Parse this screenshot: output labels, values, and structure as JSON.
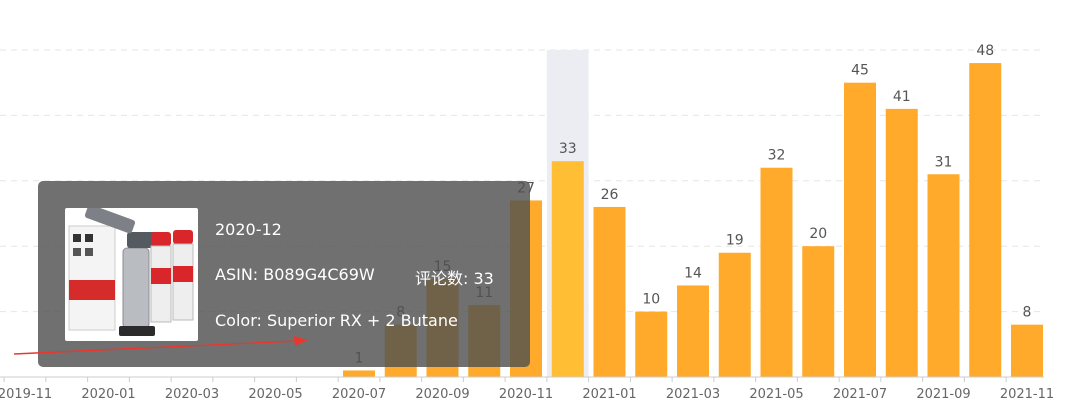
{
  "chart_data": {
    "type": "bar",
    "categories": [
      "2019-11",
      "2019-12",
      "2020-01",
      "2020-02",
      "2020-03",
      "2020-04",
      "2020-05",
      "2020-06",
      "2020-07",
      "2020-08",
      "2020-09",
      "2020-10",
      "2020-11",
      "2020-12",
      "2021-01",
      "2021-02",
      "2021-03",
      "2021-04",
      "2021-05",
      "2021-06",
      "2021-07",
      "2021-08",
      "2021-09",
      "2021-10",
      "2021-11"
    ],
    "visible_tick_labels": [
      "2019-11",
      "2020-01",
      "2020-03",
      "2020-05",
      "2020-07",
      "2020-09",
      "2020-11",
      "2021-01",
      "2021-03",
      "2021-05",
      "2021-07",
      "2021-09",
      "2021-11"
    ],
    "values": [
      null,
      null,
      null,
      null,
      null,
      null,
      null,
      null,
      1,
      8,
      15,
      11,
      27,
      33,
      26,
      10,
      14,
      19,
      32,
      20,
      45,
      41,
      31,
      48,
      8
    ],
    "highlighted_category": "2020-12",
    "ylim": [
      0,
      50
    ],
    "grid": true,
    "bar_color": "#FFAA2B",
    "highlight_bar_color": "#FFBE33",
    "highlight_band_color": "#EBEDF3"
  },
  "tooltip": {
    "month": "2020-12",
    "asin": "ASIN: B089G4C69W",
    "reviews": "评论数: 33",
    "color": "Color: Superior RX + 2 Butane"
  }
}
